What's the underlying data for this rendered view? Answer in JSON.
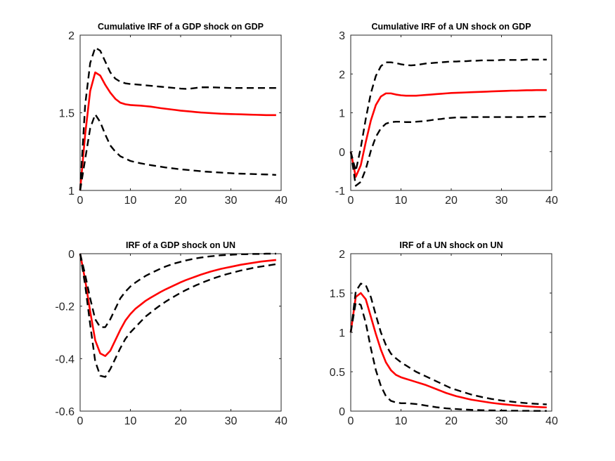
{
  "chart_data": [
    {
      "type": "line",
      "title": "Cumulative IRF of a GDP shock on GDP",
      "xlabel": "",
      "ylabel": "",
      "xlim": [
        0,
        40
      ],
      "ylim": [
        1,
        2
      ],
      "xticks": [
        0,
        10,
        20,
        30,
        40
      ],
      "yticks": [
        1,
        1.5,
        2
      ],
      "ytick_labels": [
        "1",
        "1.5",
        "2"
      ],
      "grid": false,
      "x": [
        0,
        1,
        2,
        3,
        4,
        5,
        6,
        7,
        8,
        9,
        10,
        11,
        12,
        13,
        14,
        15,
        16,
        17,
        18,
        19,
        20,
        21,
        22,
        23,
        24,
        25,
        26,
        27,
        28,
        29,
        30,
        31,
        32,
        33,
        34,
        35,
        36,
        37,
        38,
        39
      ],
      "series": [
        {
          "role": "estimate",
          "color": "#ff0000",
          "style": "solid",
          "values": [
            1.0,
            1.36,
            1.64,
            1.76,
            1.74,
            1.68,
            1.63,
            1.59,
            1.565,
            1.555,
            1.55,
            1.548,
            1.546,
            1.543,
            1.54,
            1.535,
            1.53,
            1.526,
            1.522,
            1.518,
            1.514,
            1.511,
            1.508,
            1.505,
            1.502,
            1.5,
            1.498,
            1.496,
            1.494,
            1.493,
            1.492,
            1.491,
            1.49,
            1.489,
            1.488,
            1.487,
            1.486,
            1.485,
            1.485,
            1.485
          ]
        },
        {
          "role": "upper-band",
          "color": "#000000",
          "style": "dashed",
          "values": [
            1.0,
            1.55,
            1.82,
            1.92,
            1.9,
            1.83,
            1.76,
            1.72,
            1.7,
            1.69,
            1.685,
            1.683,
            1.68,
            1.677,
            1.674,
            1.671,
            1.668,
            1.665,
            1.662,
            1.659,
            1.656,
            1.654,
            1.656,
            1.66,
            1.664,
            1.664,
            1.664,
            1.663,
            1.662,
            1.661,
            1.66,
            1.66,
            1.66,
            1.66,
            1.66,
            1.66,
            1.66,
            1.66,
            1.66,
            1.66
          ]
        },
        {
          "role": "lower-band",
          "color": "#000000",
          "style": "dashed",
          "values": [
            1.0,
            1.2,
            1.4,
            1.49,
            1.44,
            1.36,
            1.29,
            1.25,
            1.22,
            1.205,
            1.19,
            1.182,
            1.175,
            1.169,
            1.163,
            1.158,
            1.153,
            1.148,
            1.144,
            1.14,
            1.136,
            1.133,
            1.13,
            1.127,
            1.124,
            1.121,
            1.119,
            1.117,
            1.115,
            1.113,
            1.111,
            1.109,
            1.108,
            1.107,
            1.106,
            1.105,
            1.104,
            1.103,
            1.102,
            1.1
          ]
        }
      ]
    },
    {
      "type": "line",
      "title": "Cumulative IRF of a UN shock on GDP",
      "xlabel": "",
      "ylabel": "",
      "xlim": [
        0,
        40
      ],
      "ylim": [
        -1,
        3
      ],
      "xticks": [
        0,
        10,
        20,
        30,
        40
      ],
      "yticks": [
        -1,
        0,
        1,
        2,
        3
      ],
      "ytick_labels": [
        "-1",
        "0",
        "1",
        "2",
        "3"
      ],
      "grid": false,
      "x": [
        0,
        1,
        2,
        3,
        4,
        5,
        6,
        7,
        8,
        9,
        10,
        11,
        12,
        13,
        14,
        15,
        16,
        17,
        18,
        19,
        20,
        21,
        22,
        23,
        24,
        25,
        26,
        27,
        28,
        29,
        30,
        31,
        32,
        33,
        34,
        35,
        36,
        37,
        38,
        39
      ],
      "series": [
        {
          "role": "estimate",
          "color": "#ff0000",
          "style": "solid",
          "values": [
            0.0,
            -0.65,
            -0.35,
            0.25,
            0.8,
            1.2,
            1.42,
            1.5,
            1.5,
            1.47,
            1.45,
            1.44,
            1.44,
            1.44,
            1.45,
            1.46,
            1.47,
            1.48,
            1.49,
            1.5,
            1.51,
            1.515,
            1.52,
            1.525,
            1.53,
            1.535,
            1.54,
            1.545,
            1.55,
            1.555,
            1.56,
            1.565,
            1.57,
            1.57,
            1.575,
            1.58,
            1.58,
            1.585,
            1.585,
            1.585
          ]
        },
        {
          "role": "upper-band",
          "color": "#000000",
          "style": "dashed",
          "values": [
            0.0,
            -0.5,
            0.1,
            0.85,
            1.5,
            1.95,
            2.2,
            2.3,
            2.3,
            2.28,
            2.25,
            2.23,
            2.22,
            2.23,
            2.25,
            2.27,
            2.28,
            2.29,
            2.3,
            2.31,
            2.32,
            2.32,
            2.33,
            2.33,
            2.34,
            2.34,
            2.35,
            2.35,
            2.35,
            2.35,
            2.36,
            2.36,
            2.36,
            2.36,
            2.36,
            2.37,
            2.37,
            2.37,
            2.37,
            2.37
          ]
        },
        {
          "role": "lower-band",
          "color": "#000000",
          "style": "dashed",
          "values": [
            0.0,
            -0.88,
            -0.78,
            -0.45,
            0.02,
            0.38,
            0.6,
            0.72,
            0.76,
            0.77,
            0.77,
            0.76,
            0.76,
            0.77,
            0.78,
            0.79,
            0.81,
            0.83,
            0.84,
            0.86,
            0.87,
            0.88,
            0.88,
            0.88,
            0.89,
            0.89,
            0.89,
            0.89,
            0.89,
            0.89,
            0.89,
            0.89,
            0.89,
            0.89,
            0.89,
            0.89,
            0.9,
            0.9,
            0.9,
            0.9
          ]
        }
      ]
    },
    {
      "type": "line",
      "title": "IRF of a GDP shock on UN",
      "xlabel": "",
      "ylabel": "",
      "xlim": [
        0,
        40
      ],
      "ylim": [
        -0.6,
        0
      ],
      "xticks": [
        0,
        10,
        20,
        30,
        40
      ],
      "yticks": [
        -0.6,
        -0.4,
        -0.2,
        0
      ],
      "ytick_labels": [
        "-0.6",
        "-0.4",
        "-0.2",
        "0"
      ],
      "grid": false,
      "x": [
        0,
        1,
        2,
        3,
        4,
        5,
        6,
        7,
        8,
        9,
        10,
        11,
        12,
        13,
        14,
        15,
        16,
        17,
        18,
        19,
        20,
        21,
        22,
        23,
        24,
        25,
        26,
        27,
        28,
        29,
        30,
        31,
        32,
        33,
        34,
        35,
        36,
        37,
        38,
        39
      ],
      "series": [
        {
          "role": "estimate",
          "color": "#ff0000",
          "style": "solid",
          "values": [
            0.0,
            -0.1,
            -0.22,
            -0.33,
            -0.38,
            -0.39,
            -0.37,
            -0.33,
            -0.29,
            -0.255,
            -0.23,
            -0.21,
            -0.195,
            -0.18,
            -0.168,
            -0.157,
            -0.146,
            -0.136,
            -0.127,
            -0.118,
            -0.109,
            -0.101,
            -0.094,
            -0.087,
            -0.08,
            -0.074,
            -0.068,
            -0.063,
            -0.058,
            -0.054,
            -0.05,
            -0.046,
            -0.042,
            -0.039,
            -0.036,
            -0.033,
            -0.03,
            -0.028,
            -0.026,
            -0.024
          ]
        },
        {
          "role": "upper-band",
          "color": "#000000",
          "style": "dashed",
          "values": [
            0.0,
            -0.08,
            -0.17,
            -0.25,
            -0.28,
            -0.28,
            -0.25,
            -0.21,
            -0.17,
            -0.145,
            -0.125,
            -0.11,
            -0.097,
            -0.085,
            -0.075,
            -0.066,
            -0.057,
            -0.049,
            -0.042,
            -0.036,
            -0.031,
            -0.026,
            -0.022,
            -0.018,
            -0.015,
            -0.012,
            -0.01,
            -0.008,
            -0.006,
            -0.005,
            -0.004,
            -0.003,
            -0.002,
            -0.002,
            -0.001,
            -0.001,
            -0.001,
            0.0,
            0.0,
            0.0
          ]
        },
        {
          "role": "lower-band",
          "color": "#000000",
          "style": "dashed",
          "values": [
            0.0,
            -0.12,
            -0.27,
            -0.41,
            -0.465,
            -0.47,
            -0.44,
            -0.4,
            -0.36,
            -0.325,
            -0.3,
            -0.28,
            -0.26,
            -0.24,
            -0.225,
            -0.21,
            -0.196,
            -0.183,
            -0.171,
            -0.16,
            -0.149,
            -0.139,
            -0.13,
            -0.121,
            -0.113,
            -0.105,
            -0.098,
            -0.091,
            -0.085,
            -0.079,
            -0.074,
            -0.069,
            -0.064,
            -0.06,
            -0.056,
            -0.052,
            -0.049,
            -0.046,
            -0.043,
            -0.04
          ]
        }
      ]
    },
    {
      "type": "line",
      "title": "IRF of a UN shock on UN",
      "xlabel": "",
      "ylabel": "",
      "xlim": [
        0,
        40
      ],
      "ylim": [
        0,
        2
      ],
      "xticks": [
        0,
        10,
        20,
        30,
        40
      ],
      "yticks": [
        0,
        0.5,
        1,
        1.5,
        2
      ],
      "ytick_labels": [
        "0",
        "0.5",
        "1",
        "1.5",
        "2"
      ],
      "grid": false,
      "x": [
        0,
        1,
        2,
        3,
        4,
        5,
        6,
        7,
        8,
        9,
        10,
        11,
        12,
        13,
        14,
        15,
        16,
        17,
        18,
        19,
        20,
        21,
        22,
        23,
        24,
        25,
        26,
        27,
        28,
        29,
        30,
        31,
        32,
        33,
        34,
        35,
        36,
        37,
        38,
        39
      ],
      "series": [
        {
          "role": "estimate",
          "color": "#ff0000",
          "style": "solid",
          "values": [
            1.0,
            1.45,
            1.5,
            1.42,
            1.2,
            0.98,
            0.78,
            0.62,
            0.52,
            0.46,
            0.43,
            0.41,
            0.39,
            0.37,
            0.35,
            0.33,
            0.305,
            0.28,
            0.255,
            0.23,
            0.21,
            0.19,
            0.175,
            0.16,
            0.145,
            0.135,
            0.125,
            0.115,
            0.105,
            0.097,
            0.09,
            0.083,
            0.077,
            0.071,
            0.066,
            0.061,
            0.057,
            0.053,
            0.05,
            0.047
          ]
        },
        {
          "role": "upper-band",
          "color": "#000000",
          "style": "dashed",
          "values": [
            1.0,
            1.52,
            1.62,
            1.6,
            1.45,
            1.22,
            1.0,
            0.84,
            0.73,
            0.67,
            0.62,
            0.58,
            0.54,
            0.5,
            0.47,
            0.44,
            0.41,
            0.38,
            0.35,
            0.32,
            0.29,
            0.27,
            0.25,
            0.23,
            0.21,
            0.195,
            0.18,
            0.167,
            0.155,
            0.145,
            0.135,
            0.127,
            0.12,
            0.113,
            0.107,
            0.101,
            0.096,
            0.092,
            0.088,
            0.085
          ]
        },
        {
          "role": "lower-band",
          "color": "#000000",
          "style": "dashed",
          "values": [
            1.0,
            1.38,
            1.35,
            1.12,
            0.8,
            0.52,
            0.32,
            0.19,
            0.13,
            0.11,
            0.1,
            0.1,
            0.095,
            0.09,
            0.08,
            0.07,
            0.06,
            0.05,
            0.042,
            0.035,
            0.03,
            0.026,
            0.022,
            0.019,
            0.016,
            0.014,
            0.012,
            0.01,
            0.009,
            0.008,
            0.007,
            0.006,
            0.005,
            0.005,
            0.004,
            0.004,
            0.003,
            0.003,
            0.003,
            0.003
          ]
        }
      ]
    }
  ]
}
